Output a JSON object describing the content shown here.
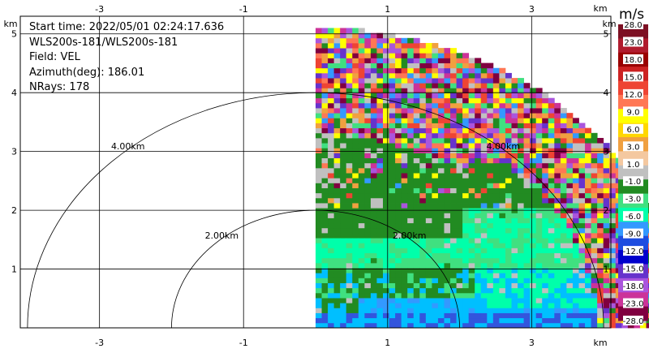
{
  "header": {
    "start_time": "Start time: 2022/05/01 02:24:17.636",
    "instrument": "WLS200s-181/WLS200s-181",
    "field": "Field: VEL",
    "azimuth": "Azimuth(deg): 186.01",
    "nrays": "NRays: 178"
  },
  "chart_data": {
    "type": "heatmap",
    "description_kind": "polar lidar sector (RHI-style) velocity field",
    "x_unit": "km",
    "y_unit": "km",
    "xlim": [
      -4.1,
      4.1
    ],
    "ylim": [
      0,
      5.3
    ],
    "x_ticks": [
      -3,
      -1,
      1,
      3
    ],
    "x_tick_labels": [
      "-3",
      "-1",
      "1",
      "3"
    ],
    "y_ticks": [
      1,
      2,
      3,
      4,
      5
    ],
    "y_tick_labels": [
      "1",
      "2",
      "3",
      "4",
      "5"
    ],
    "grid": true,
    "max_range_km": 5.1,
    "range_rings": [
      {
        "radius_km": 2.0,
        "label": "2.00km"
      },
      {
        "radius_km": 4.0,
        "label": "4.00km"
      }
    ],
    "colorbar": {
      "unit": "m/s",
      "labels": [
        "28.0",
        "23.0",
        "18.0",
        "15.0",
        "12.0",
        "9.0",
        "6.0",
        "3.0",
        "1.0",
        "-1.0",
        "-3.0",
        "-6.0",
        "-9.0",
        "-12.0",
        "-15.0",
        "-18.0",
        "-23.0",
        "-28.0"
      ],
      "colors": [
        "#7d1023",
        "#b01c2e",
        "#990000",
        "#cc2222",
        "#ee4433",
        "#ff7755",
        "#ffff00",
        "#ffd700",
        "#f0a040",
        "#f4c8a0",
        "#c0c0c0",
        "#228b22",
        "#40e080",
        "#00ffaa",
        "#3399ff",
        "#1e4de0",
        "#0000cc",
        "#6633cc",
        "#aa55dd",
        "#cc3399",
        "#800040"
      ]
    }
  }
}
